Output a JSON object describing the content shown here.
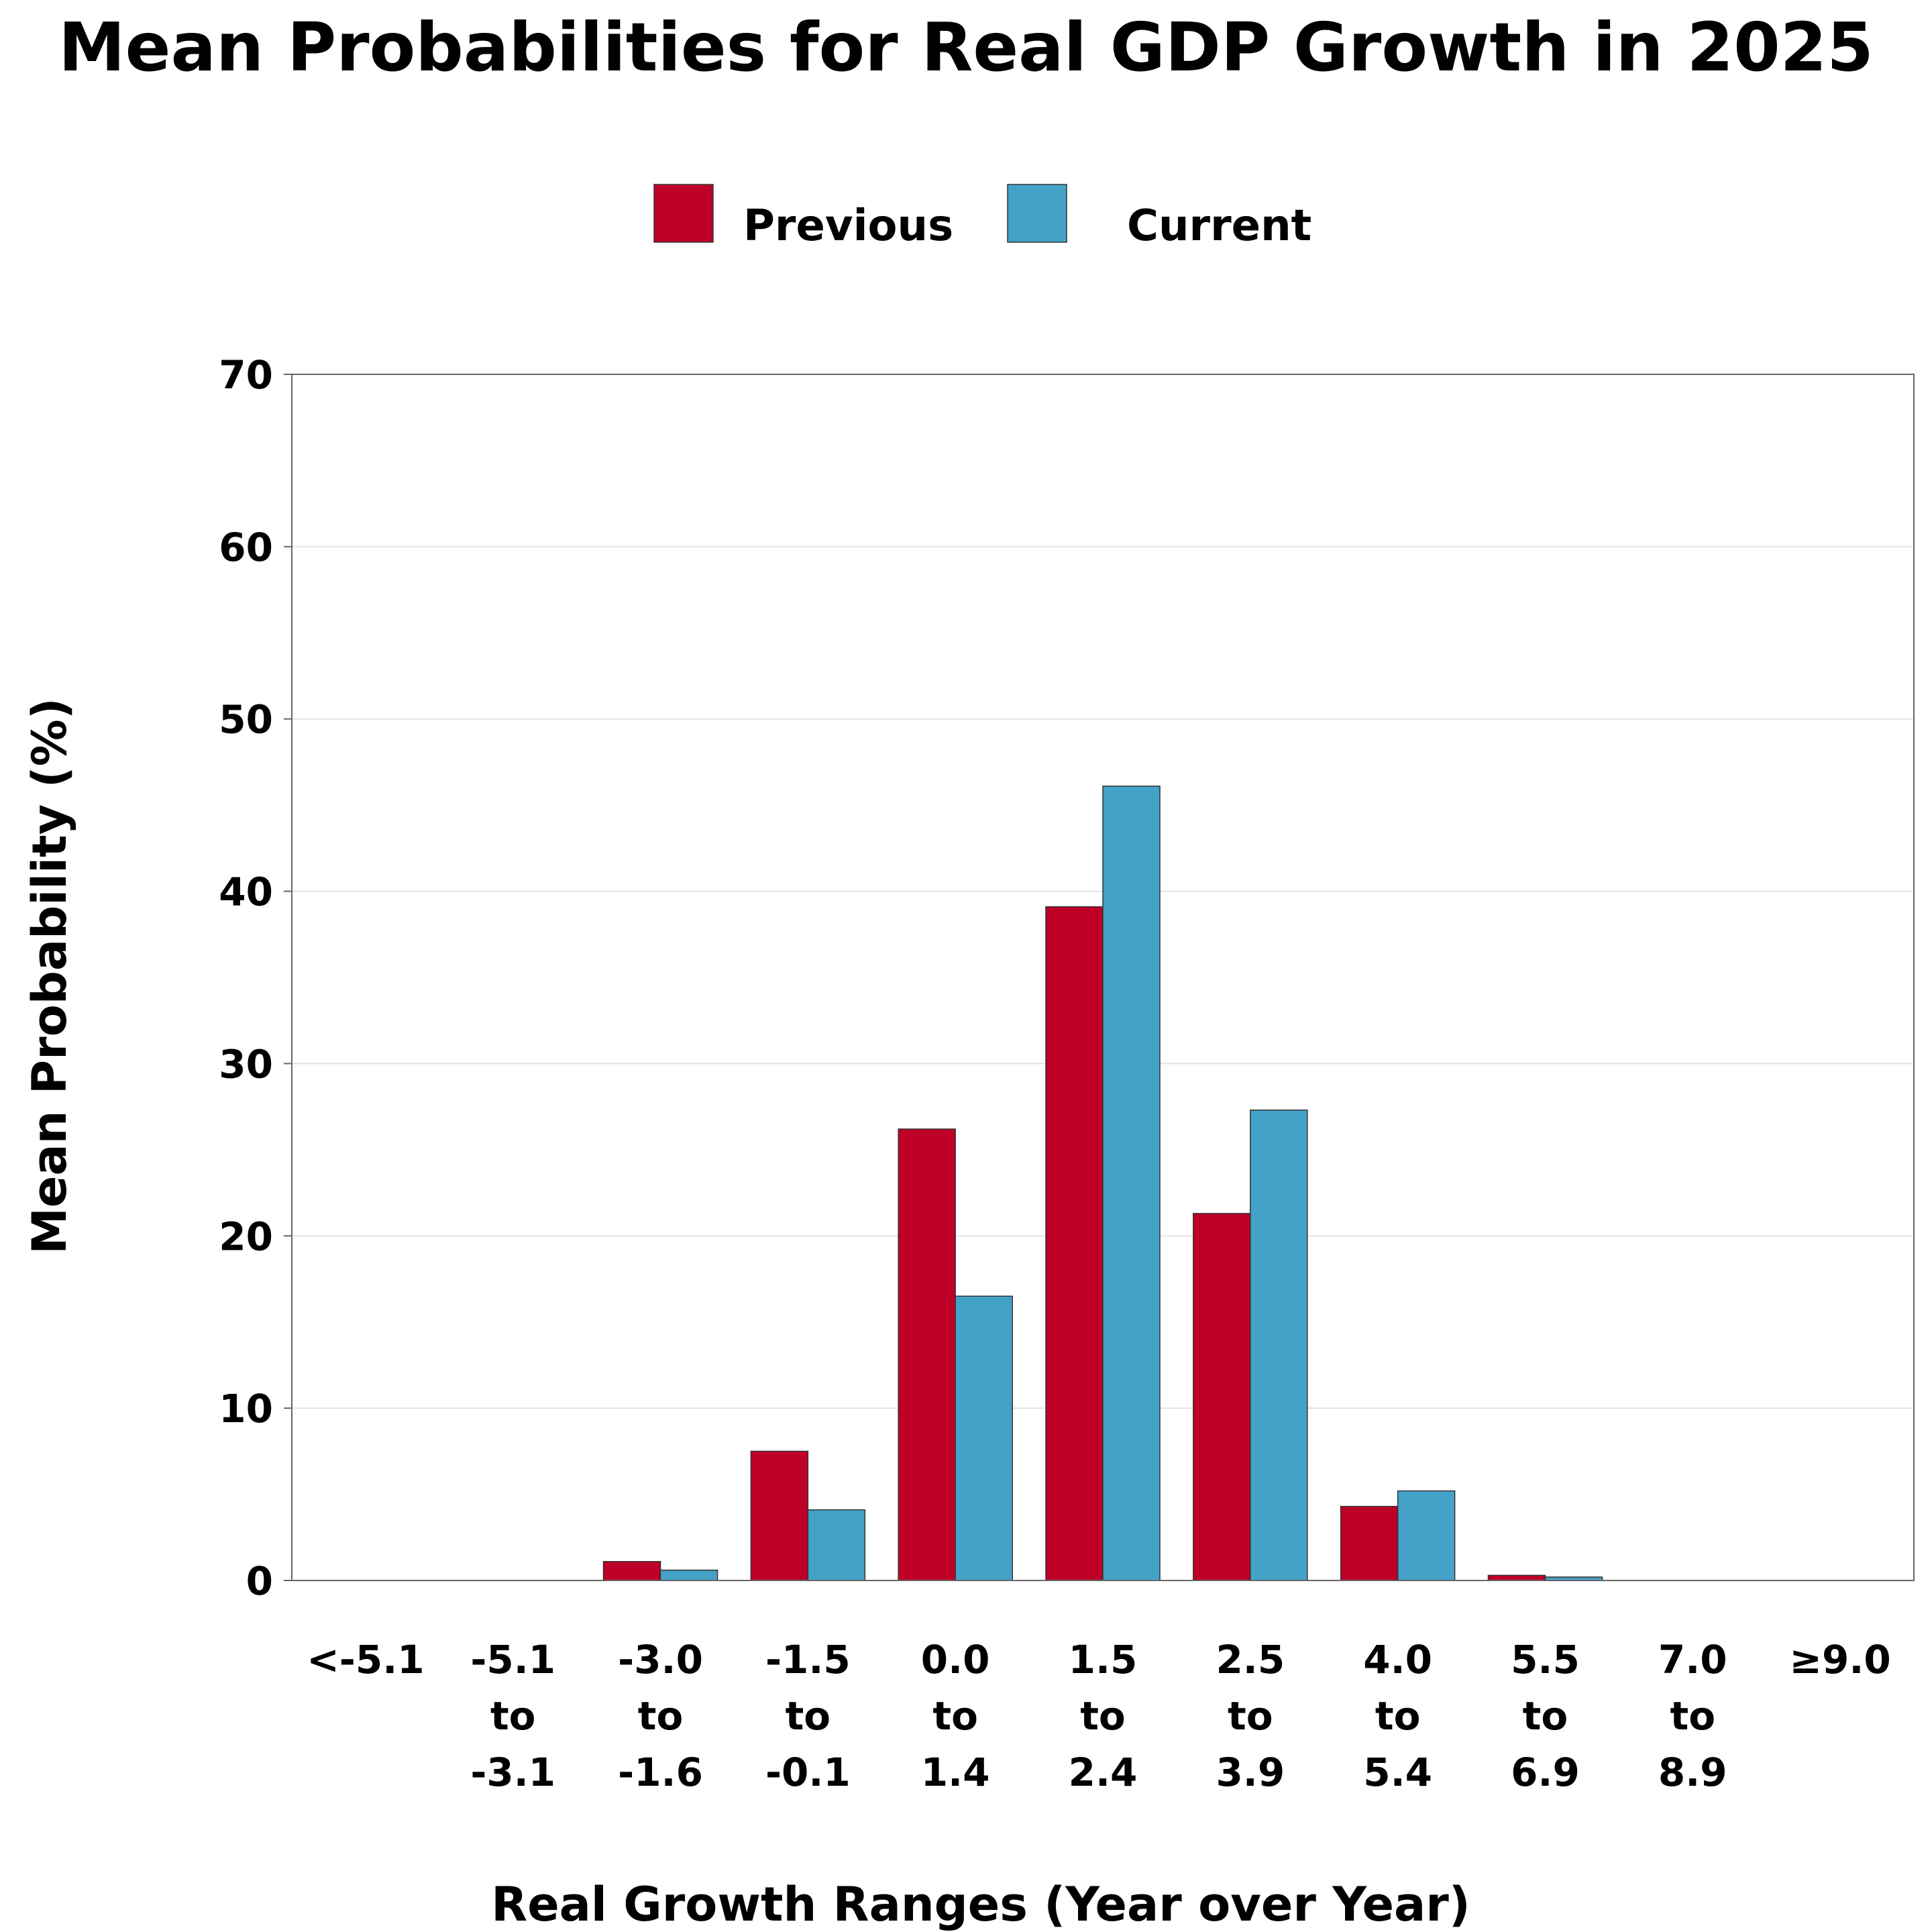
{
  "chart_data": {
    "type": "bar",
    "title": "Mean Probabilities for Real GDP Growth in 2025",
    "xlabel": "Real Growth Ranges (Year over Year)",
    "ylabel": "Mean Probability (%)",
    "ylim": [
      0,
      70
    ],
    "yticks": [
      0,
      10,
      20,
      30,
      40,
      50,
      60,
      70
    ],
    "grid": true,
    "legend_position": "top-center",
    "categories": [
      [
        "<-5.1"
      ],
      [
        "-5.1",
        "to",
        "-3.1"
      ],
      [
        "-3.0",
        "to",
        "-1.6"
      ],
      [
        "-1.5",
        "to",
        "-0.1"
      ],
      [
        "0.0",
        "to",
        "1.4"
      ],
      [
        "1.5",
        "to",
        "2.4"
      ],
      [
        "2.5",
        "to",
        "3.9"
      ],
      [
        "4.0",
        "to",
        "5.4"
      ],
      [
        "5.5",
        "to",
        "6.9"
      ],
      [
        "7.0",
        "to",
        "8.9"
      ],
      [
        "≥9.0"
      ]
    ],
    "series": [
      {
        "name": "Previous",
        "color": "#be0028",
        "values": [
          0.0,
          0.0,
          1.1,
          7.5,
          26.2,
          39.1,
          21.3,
          4.3,
          0.3,
          0.0,
          0.0
        ]
      },
      {
        "name": "Current",
        "color": "#44a2c9",
        "values": [
          0.0,
          0.0,
          0.6,
          4.1,
          16.5,
          46.1,
          27.3,
          5.2,
          0.2,
          0.0,
          0.0
        ]
      }
    ]
  }
}
